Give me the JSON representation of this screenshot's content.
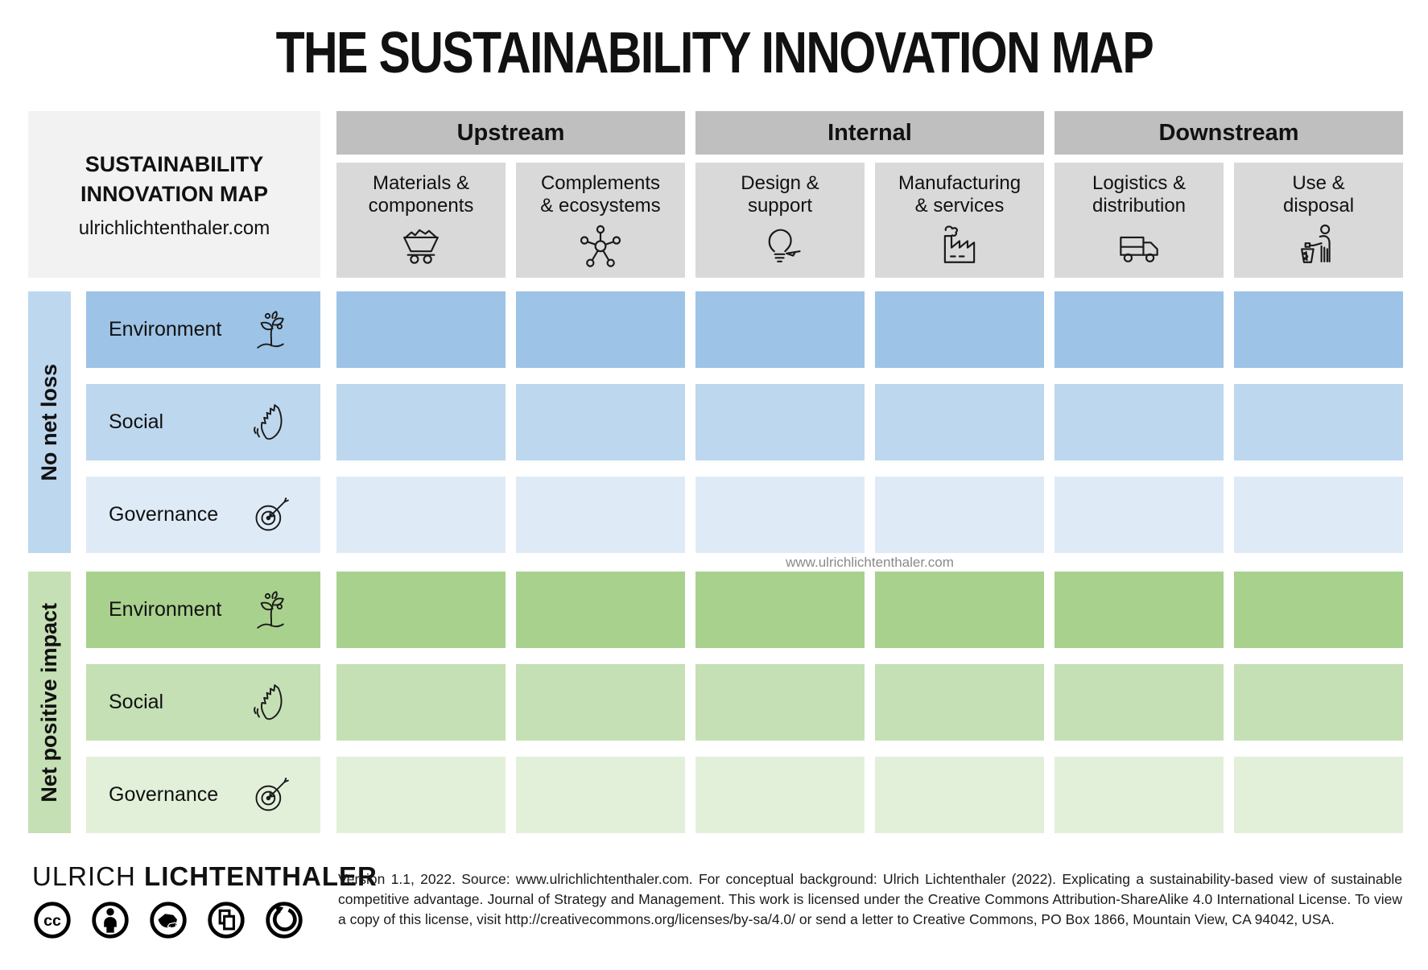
{
  "title": "THE SUSTAINABILITY INNOVATION MAP",
  "corner": {
    "line1": "SUSTAINABILITY",
    "line2": "INNOVATION MAP",
    "url": "ulrichlichtenthaler.com"
  },
  "watermark": "www.ulrichlichtenthaler.com",
  "groups": [
    {
      "label": "Upstream"
    },
    {
      "label": "Internal"
    },
    {
      "label": "Downstream"
    }
  ],
  "columns": [
    {
      "line1": "Materials &",
      "line2": "components",
      "icon": "mining-cart-icon"
    },
    {
      "line1": "Complements",
      "line2": "& ecosystems",
      "icon": "network-icon"
    },
    {
      "line1": "Design &",
      "line2": "support",
      "icon": "bulb-pencil-icon"
    },
    {
      "line1": "Manufacturing",
      "line2": "& services",
      "icon": "factory-icon"
    },
    {
      "line1": "Logistics &",
      "line2": "distribution",
      "icon": "truck-icon"
    },
    {
      "line1": "Use &",
      "line2": "disposal",
      "icon": "person-trash-icon"
    }
  ],
  "row_groups": [
    {
      "label": "No net loss",
      "strip_color": "#bdd7ee",
      "rows": [
        {
          "label": "Environment",
          "icon": "sprout-icon",
          "cell_color": "#9dc3e6"
        },
        {
          "label": "Social",
          "icon": "waving-hand-icon",
          "cell_color": "#bdd7ee"
        },
        {
          "label": "Governance",
          "icon": "target-arrow-icon",
          "cell_color": "#deebf7"
        }
      ]
    },
    {
      "label": "Net positive impact",
      "strip_color": "#c5e0b4",
      "rows": [
        {
          "label": "Environment",
          "icon": "sprout-icon",
          "cell_color": "#a9d18e"
        },
        {
          "label": "Social",
          "icon": "waving-hand-icon",
          "cell_color": "#c5e0b4"
        },
        {
          "label": "Governance",
          "icon": "target-arrow-icon",
          "cell_color": "#e2f0d9"
        }
      ]
    }
  ],
  "footer": {
    "brand": {
      "first": "ULRICH",
      "last": "LICHTENTHALER",
      "icons": [
        "cc-icon",
        "attribution-person-icon",
        "press-icon",
        "copy-icon",
        "share-alike-icon"
      ]
    },
    "license_text": "Version 1.1, 2022. Source: www.ulrichlichtenthaler.com. For conceptual background: Ulrich Lichtenthaler (2022). Explicating a sustainability-based view of sustainable competitive advantage. Journal of Strategy and Management. This work is licensed under the Creative Commons Attribution-ShareAlike 4.0 International License. To view a copy of this license, visit http://creativecommons.org/licenses/by-sa/4.0/ or send a letter to Creative Commons, PO Box 1866, Mountain View, CA 94042, USA."
  },
  "colors": {
    "group_bar": "#bfbfbf",
    "column_header": "#d9d9d9",
    "corner_box": "#f2f2f2",
    "blue_cells": [
      "#9dc3e6",
      "#bdd7ee",
      "#deebf7"
    ],
    "green_cells": [
      "#a9d18e",
      "#c5e0b4",
      "#e2f0d9"
    ],
    "watermark_text": "#8a8a8a"
  }
}
